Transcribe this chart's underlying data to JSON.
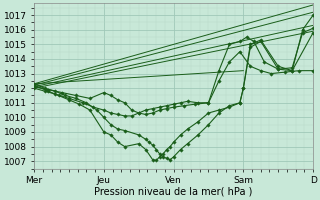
{
  "xlabel": "Pression niveau de la mer( hPa )",
  "xlim": [
    0,
    4.0
  ],
  "ylim": [
    1006.5,
    1017.8
  ],
  "yticks": [
    1007,
    1008,
    1009,
    1010,
    1011,
    1012,
    1013,
    1014,
    1015,
    1016,
    1017
  ],
  "xtick_labels": [
    "Mer",
    "Jeu",
    "Ven",
    "Sam",
    "D"
  ],
  "xtick_positions": [
    0,
    1,
    2,
    3,
    4
  ],
  "bg_color": "#c8e8d8",
  "grid_major_color": "#a0c8b8",
  "grid_minor_color": "#b8d8c8",
  "line_color": "#1a5e1a",
  "marker_color": "#1a5e1a",
  "straight_lines": [
    {
      "x": [
        0.0,
        4.0
      ],
      "y": [
        1012.3,
        1017.7
      ]
    },
    {
      "x": [
        0.0,
        4.0
      ],
      "y": [
        1012.2,
        1017.2
      ]
    },
    {
      "x": [
        0.0,
        4.0
      ],
      "y": [
        1012.1,
        1016.3
      ]
    },
    {
      "x": [
        0.0,
        4.0
      ],
      "y": [
        1012.0,
        1015.9
      ]
    },
    {
      "x": [
        0.0,
        3.0
      ],
      "y": [
        1012.3,
        1013.2
      ]
    }
  ],
  "curved_lines": [
    {
      "x": [
        0.0,
        0.15,
        0.3,
        0.5,
        0.7,
        0.85,
        1.0,
        1.1,
        1.2,
        1.3,
        1.4,
        1.5,
        1.6,
        1.7,
        1.8,
        1.9,
        2.0,
        2.1,
        2.2,
        2.35,
        2.5,
        2.65,
        2.8,
        2.95,
        3.1,
        3.25,
        3.4,
        3.6,
        3.8,
        4.0
      ],
      "y": [
        1012.0,
        1011.8,
        1011.6,
        1011.3,
        1011.0,
        1010.7,
        1010.5,
        1010.3,
        1010.2,
        1010.1,
        1010.1,
        1010.3,
        1010.5,
        1010.6,
        1010.7,
        1010.8,
        1010.9,
        1011.0,
        1011.1,
        1011.0,
        1011.0,
        1012.5,
        1013.8,
        1014.5,
        1013.5,
        1013.2,
        1013.0,
        1013.1,
        1013.2,
        1013.2
      ]
    },
    {
      "x": [
        0.0,
        0.2,
        0.4,
        0.6,
        0.8,
        1.0,
        1.1,
        1.2,
        1.3,
        1.4,
        1.5,
        1.6,
        1.7,
        1.8,
        1.9,
        2.0,
        2.15,
        2.3,
        2.5,
        2.65,
        2.8,
        2.95,
        3.05,
        3.15,
        3.3,
        3.5,
        3.7,
        3.85,
        4.0
      ],
      "y": [
        1012.1,
        1011.9,
        1011.7,
        1011.5,
        1011.3,
        1011.7,
        1011.5,
        1011.2,
        1011.0,
        1010.5,
        1010.3,
        1010.2,
        1010.3,
        1010.5,
        1010.6,
        1010.7,
        1010.8,
        1010.9,
        1011.0,
        1013.2,
        1015.0,
        1015.2,
        1015.5,
        1015.2,
        1013.8,
        1013.3,
        1013.4,
        1015.8,
        1016.1
      ]
    },
    {
      "x": [
        0.0,
        0.2,
        0.35,
        0.5,
        0.65,
        0.8,
        1.0,
        1.1,
        1.2,
        1.3,
        1.5,
        1.6,
        1.7,
        1.75,
        1.8,
        1.85,
        1.9,
        1.95,
        2.0,
        2.1,
        2.2,
        2.35,
        2.5,
        2.65,
        2.8,
        2.95,
        3.0,
        3.1,
        3.25,
        3.5,
        3.7,
        3.85,
        4.0
      ],
      "y": [
        1012.2,
        1011.8,
        1011.5,
        1011.2,
        1010.9,
        1010.5,
        1009.0,
        1008.8,
        1008.3,
        1008.0,
        1008.2,
        1007.8,
        1007.1,
        1007.05,
        1007.3,
        1007.5,
        1007.8,
        1008.0,
        1008.3,
        1008.8,
        1009.2,
        1009.7,
        1010.3,
        1010.5,
        1010.7,
        1011.0,
        1012.0,
        1015.0,
        1015.3,
        1013.5,
        1013.2,
        1016.0,
        1017.0
      ]
    },
    {
      "x": [
        0.0,
        0.15,
        0.3,
        0.45,
        0.6,
        0.75,
        0.9,
        1.0,
        1.1,
        1.2,
        1.3,
        1.5,
        1.6,
        1.65,
        1.7,
        1.75,
        1.8,
        1.85,
        1.9,
        1.95,
        2.0,
        2.1,
        2.2,
        2.35,
        2.5,
        2.65,
        2.8,
        2.95,
        3.0,
        3.1,
        3.25,
        3.5,
        3.7,
        4.0
      ],
      "y": [
        1012.3,
        1012.0,
        1011.8,
        1011.5,
        1011.3,
        1011.0,
        1010.5,
        1010.0,
        1009.5,
        1009.2,
        1009.1,
        1008.8,
        1008.5,
        1008.3,
        1008.1,
        1007.8,
        1007.5,
        1007.3,
        1007.2,
        1007.1,
        1007.3,
        1007.8,
        1008.2,
        1008.8,
        1009.5,
        1010.3,
        1010.8,
        1011.0,
        1012.0,
        1014.8,
        1015.2,
        1013.3,
        1013.2,
        1015.8
      ]
    }
  ]
}
